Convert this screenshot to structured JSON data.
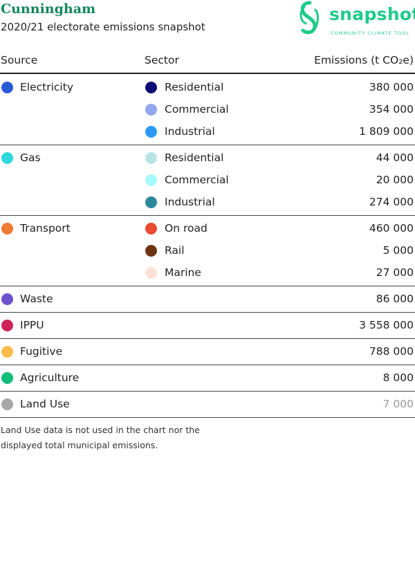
{
  "header": {
    "title": "Cunningham",
    "subtitle": "2020/21 electorate emissions snapshot",
    "logo": {
      "name": "snapshot",
      "tagline": "COMMUNITY CLIMATE TOOL"
    }
  },
  "table": {
    "columns": [
      "Source",
      "Sector",
      "Emissions (t CO₂e)"
    ],
    "rows": [
      {
        "source": "Electricity",
        "color": "#2a5bd7",
        "sectors": [
          {
            "name": "Residential",
            "color": "#0a0a78",
            "value": "380 000"
          },
          {
            "name": "Commercial",
            "color": "#8fa8ee",
            "value": "354 000"
          },
          {
            "name": "Industrial",
            "color": "#2a9af5",
            "value": "1 809 000"
          }
        ]
      },
      {
        "source": "Gas",
        "color": "#2ed8dc",
        "sectors": [
          {
            "name": "Residential",
            "color": "#b8e4e6",
            "value": "44 000"
          },
          {
            "name": "Commercial",
            "color": "#a6fafa",
            "value": "20 000"
          },
          {
            "name": "Industrial",
            "color": "#2a8a9c",
            "value": "274 000"
          }
        ]
      },
      {
        "source": "Transport",
        "color": "#f07a30",
        "sectors": [
          {
            "name": "On road",
            "color": "#ea4a30",
            "value": "460 000"
          },
          {
            "name": "Rail",
            "color": "#6e3412",
            "value": "5 000"
          },
          {
            "name": "Marine",
            "color": "#fce2d6",
            "value": "27 000"
          }
        ]
      },
      {
        "source": "Waste",
        "color": "#6e52cc",
        "value": "86 000"
      },
      {
        "source": "IPPU",
        "color": "#cc2458",
        "value": "3 558 000"
      },
      {
        "source": "Fugitive",
        "color": "#fcbc4a",
        "value": "788 000"
      },
      {
        "source": "Agriculture",
        "color": "#12bc7a",
        "value": "8 000"
      },
      {
        "source": "Land Use",
        "color": "#a8a8a8",
        "value": "7 000",
        "muted": true
      }
    ]
  },
  "note": [
    "Land Use data is not used in the chart nor the",
    "displayed total municipal emissions."
  ]
}
